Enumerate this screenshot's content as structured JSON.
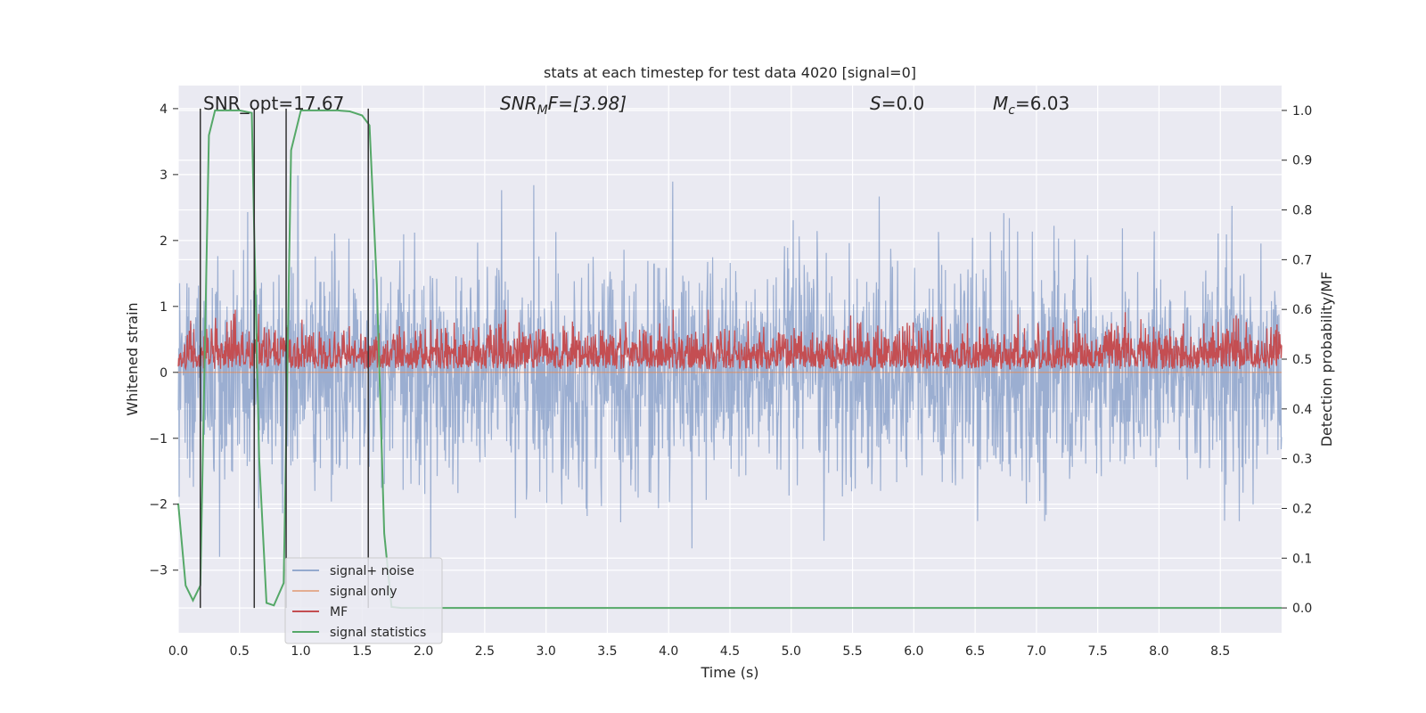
{
  "chart_data": {
    "type": "line",
    "title": "stats at each timestep for test data 4020 [signal=0]",
    "xlabel": "Time (s)",
    "ylabel_left": "Whitened strain",
    "ylabel_right": "Detection probability/MF",
    "xlim": [
      0,
      9
    ],
    "ylim_left": [
      -3.95,
      4.35
    ],
    "ylim_right": [
      -0.05,
      1.05
    ],
    "x_ticks": [
      "0.0",
      "0.5",
      "1.0",
      "1.5",
      "2.0",
      "2.5",
      "3.0",
      "3.5",
      "4.0",
      "4.5",
      "5.0",
      "5.5",
      "6.0",
      "6.5",
      "7.0",
      "7.5",
      "8.0",
      "8.5"
    ],
    "x_tick_values": [
      0,
      0.5,
      1,
      1.5,
      2,
      2.5,
      3,
      3.5,
      4,
      4.5,
      5,
      5.5,
      6,
      6.5,
      7,
      7.5,
      8,
      8.5
    ],
    "y_ticks_left": [
      "−3",
      "−2",
      "−1",
      "0",
      "1",
      "2",
      "3",
      "4"
    ],
    "y_tick_values_left": [
      -3,
      -2,
      -1,
      0,
      1,
      2,
      3,
      4
    ],
    "y_ticks_right": [
      "0.0",
      "0.1",
      "0.2",
      "0.3",
      "0.4",
      "0.5",
      "0.6",
      "0.7",
      "0.8",
      "0.9",
      "1.0"
    ],
    "y_tick_values_right": [
      0,
      0.1,
      0.2,
      0.3,
      0.4,
      0.5,
      0.6,
      0.7,
      0.8,
      0.9,
      1.0
    ],
    "grid": true,
    "legend_position": "lower-left",
    "annotations": {
      "snr_opt": "SNR_opt=17.67",
      "snr_mf_main": "SNR",
      "snr_mf_sub": "M",
      "snr_mf_rest": "F=[3.98]",
      "s_var": "S",
      "s_rest": "=0.0",
      "mc_var": "M",
      "mc_sub": "c",
      "mc_rest": "=6.03"
    },
    "vertical_markers_x": [
      0.18,
      0.62,
      0.88,
      1.55
    ],
    "series": [
      {
        "name": "signal+ noise",
        "color": "#4c72b0",
        "description_values": "whitened noise, roughly within -2.6 to +3.5 with occasional spikes"
      },
      {
        "name": "signal only",
        "color": "#dd8452",
        "values_constant": 0.0
      },
      {
        "name": "MF",
        "color": "#c44e52",
        "description_values": "matched filter output between ~0.0 and ~0.95 on the left axis scale"
      },
      {
        "name": "signal statistics",
        "color": "#55a868",
        "axis": "right",
        "x": [
          0.0,
          0.06,
          0.12,
          0.18,
          0.25,
          0.3,
          0.4,
          0.5,
          0.6,
          0.62,
          0.66,
          0.72,
          0.78,
          0.86,
          0.92,
          1.0,
          1.1,
          1.2,
          1.3,
          1.4,
          1.5,
          1.56,
          1.62,
          1.68,
          1.74,
          1.82,
          1.9,
          2.0,
          3.0,
          4.0,
          5.0,
          6.0,
          7.0,
          8.0,
          9.0
        ],
        "values": [
          0.21,
          0.045,
          0.015,
          0.045,
          0.95,
          1.0,
          1.0,
          1.0,
          0.995,
          0.75,
          0.3,
          0.01,
          0.005,
          0.05,
          0.92,
          1.0,
          1.0,
          1.0,
          1.0,
          0.998,
          0.99,
          0.97,
          0.65,
          0.15,
          0.002,
          0.0,
          0.0,
          0.0,
          0.0,
          0.0,
          0.0,
          0.0,
          0.0,
          0.0,
          0.0
        ]
      }
    ]
  }
}
